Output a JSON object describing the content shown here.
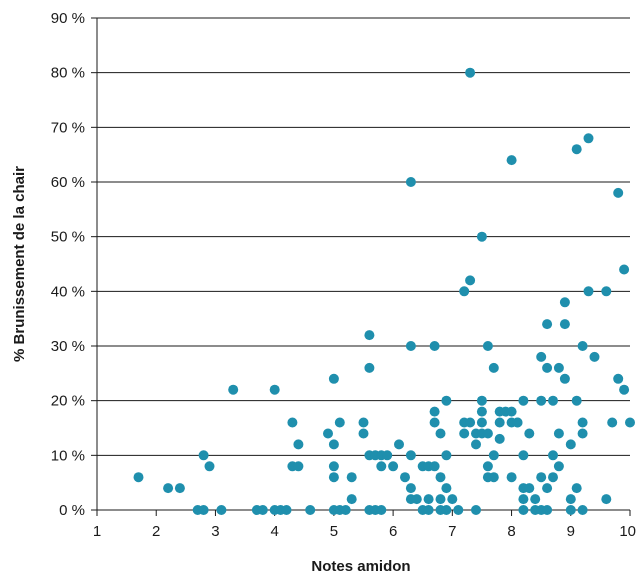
{
  "chart_data": {
    "type": "scatter",
    "xlabel": "Notes amidon",
    "ylabel": "% Brunissement de la chair",
    "xlim": [
      1,
      10
    ],
    "ylim": [
      0,
      90
    ],
    "xticks": [
      "1",
      "2",
      "3",
      "4",
      "5",
      "6",
      "7",
      "8",
      "9",
      "10"
    ],
    "yticks": [
      "0 %",
      "10 %",
      "20 %",
      "30 %",
      "40 %",
      "50 %",
      "60 %",
      "70 %",
      "80 %",
      "90 %"
    ],
    "grid": "horizontal",
    "legend": "none",
    "marker_color": "#1f8fad",
    "points": [
      [
        1.7,
        6
      ],
      [
        2.2,
        4
      ],
      [
        2.4,
        4
      ],
      [
        2.7,
        0
      ],
      [
        2.8,
        0
      ],
      [
        2.8,
        10
      ],
      [
        2.9,
        8
      ],
      [
        3.1,
        0
      ],
      [
        3.3,
        22
      ],
      [
        3.7,
        0
      ],
      [
        3.8,
        0
      ],
      [
        4.0,
        0
      ],
      [
        4.0,
        22
      ],
      [
        4.1,
        0
      ],
      [
        4.2,
        0
      ],
      [
        4.3,
        8
      ],
      [
        4.3,
        16
      ],
      [
        4.4,
        8
      ],
      [
        4.4,
        12
      ],
      [
        4.6,
        0
      ],
      [
        4.9,
        14
      ],
      [
        5.0,
        0
      ],
      [
        5.0,
        24
      ],
      [
        5.1,
        0
      ],
      [
        5.0,
        12
      ],
      [
        5.0,
        8
      ],
      [
        5.0,
        6
      ],
      [
        5.1,
        16
      ],
      [
        5.2,
        0
      ],
      [
        5.3,
        2
      ],
      [
        5.3,
        6
      ],
      [
        5.5,
        14
      ],
      [
        5.5,
        16
      ],
      [
        5.6,
        0
      ],
      [
        5.6,
        10
      ],
      [
        5.6,
        26
      ],
      [
        5.6,
        32
      ],
      [
        5.7,
        0
      ],
      [
        5.7,
        10
      ],
      [
        5.8,
        8
      ],
      [
        5.8,
        10
      ],
      [
        5.8,
        0
      ],
      [
        5.9,
        10
      ],
      [
        6.0,
        8
      ],
      [
        6.1,
        12
      ],
      [
        6.2,
        6
      ],
      [
        6.3,
        2
      ],
      [
        6.3,
        4
      ],
      [
        6.3,
        10
      ],
      [
        6.3,
        30
      ],
      [
        6.3,
        60
      ],
      [
        6.4,
        2
      ],
      [
        6.5,
        0
      ],
      [
        6.5,
        8
      ],
      [
        6.6,
        0
      ],
      [
        6.6,
        2
      ],
      [
        6.6,
        8
      ],
      [
        6.7,
        8
      ],
      [
        6.7,
        16
      ],
      [
        6.7,
        18
      ],
      [
        6.7,
        30
      ],
      [
        6.8,
        0
      ],
      [
        6.8,
        2
      ],
      [
        6.8,
        14
      ],
      [
        6.8,
        6
      ],
      [
        6.9,
        0
      ],
      [
        6.9,
        4
      ],
      [
        6.9,
        10
      ],
      [
        6.9,
        20
      ],
      [
        7.0,
        2
      ],
      [
        7.1,
        0
      ],
      [
        7.2,
        40
      ],
      [
        7.2,
        14
      ],
      [
        7.2,
        16
      ],
      [
        7.3,
        16
      ],
      [
        7.3,
        42
      ],
      [
        7.3,
        80
      ],
      [
        7.4,
        12
      ],
      [
        7.4,
        14
      ],
      [
        7.4,
        0
      ],
      [
        7.5,
        18
      ],
      [
        7.5,
        20
      ],
      [
        7.5,
        16
      ],
      [
        7.5,
        50
      ],
      [
        7.5,
        14
      ],
      [
        7.6,
        8
      ],
      [
        7.6,
        30
      ],
      [
        7.6,
        14
      ],
      [
        7.6,
        6
      ],
      [
        7.7,
        26
      ],
      [
        7.7,
        6
      ],
      [
        7.7,
        10
      ],
      [
        7.8,
        16
      ],
      [
        7.8,
        18
      ],
      [
        7.8,
        13
      ],
      [
        7.9,
        18
      ],
      [
        8.0,
        18
      ],
      [
        8.0,
        16
      ],
      [
        8.0,
        64
      ],
      [
        8.0,
        6
      ],
      [
        8.1,
        16
      ],
      [
        8.1,
        16
      ],
      [
        8.2,
        0
      ],
      [
        8.2,
        2
      ],
      [
        8.2,
        4
      ],
      [
        8.2,
        10
      ],
      [
        8.2,
        20
      ],
      [
        8.3,
        14
      ],
      [
        8.3,
        4
      ],
      [
        8.4,
        0
      ],
      [
        8.4,
        2
      ],
      [
        8.5,
        6
      ],
      [
        8.5,
        0
      ],
      [
        8.5,
        20
      ],
      [
        8.5,
        28
      ],
      [
        8.6,
        4
      ],
      [
        8.6,
        26
      ],
      [
        8.6,
        34
      ],
      [
        8.6,
        0
      ],
      [
        8.7,
        6
      ],
      [
        8.7,
        10
      ],
      [
        8.7,
        20
      ],
      [
        8.8,
        26
      ],
      [
        8.8,
        8
      ],
      [
        8.8,
        14
      ],
      [
        8.9,
        34
      ],
      [
        8.9,
        38
      ],
      [
        8.9,
        24
      ],
      [
        9.0,
        2
      ],
      [
        9.0,
        12
      ],
      [
        9.0,
        0
      ],
      [
        9.1,
        20
      ],
      [
        9.1,
        4
      ],
      [
        9.1,
        66
      ],
      [
        9.2,
        14
      ],
      [
        9.2,
        16
      ],
      [
        9.2,
        30
      ],
      [
        9.2,
        0
      ],
      [
        9.3,
        68
      ],
      [
        9.3,
        40
      ],
      [
        9.4,
        28
      ],
      [
        9.6,
        2
      ],
      [
        9.6,
        40
      ],
      [
        9.7,
        16
      ],
      [
        9.8,
        58
      ],
      [
        9.8,
        24
      ],
      [
        9.9,
        44
      ],
      [
        9.9,
        22
      ],
      [
        10.0,
        16
      ]
    ]
  }
}
